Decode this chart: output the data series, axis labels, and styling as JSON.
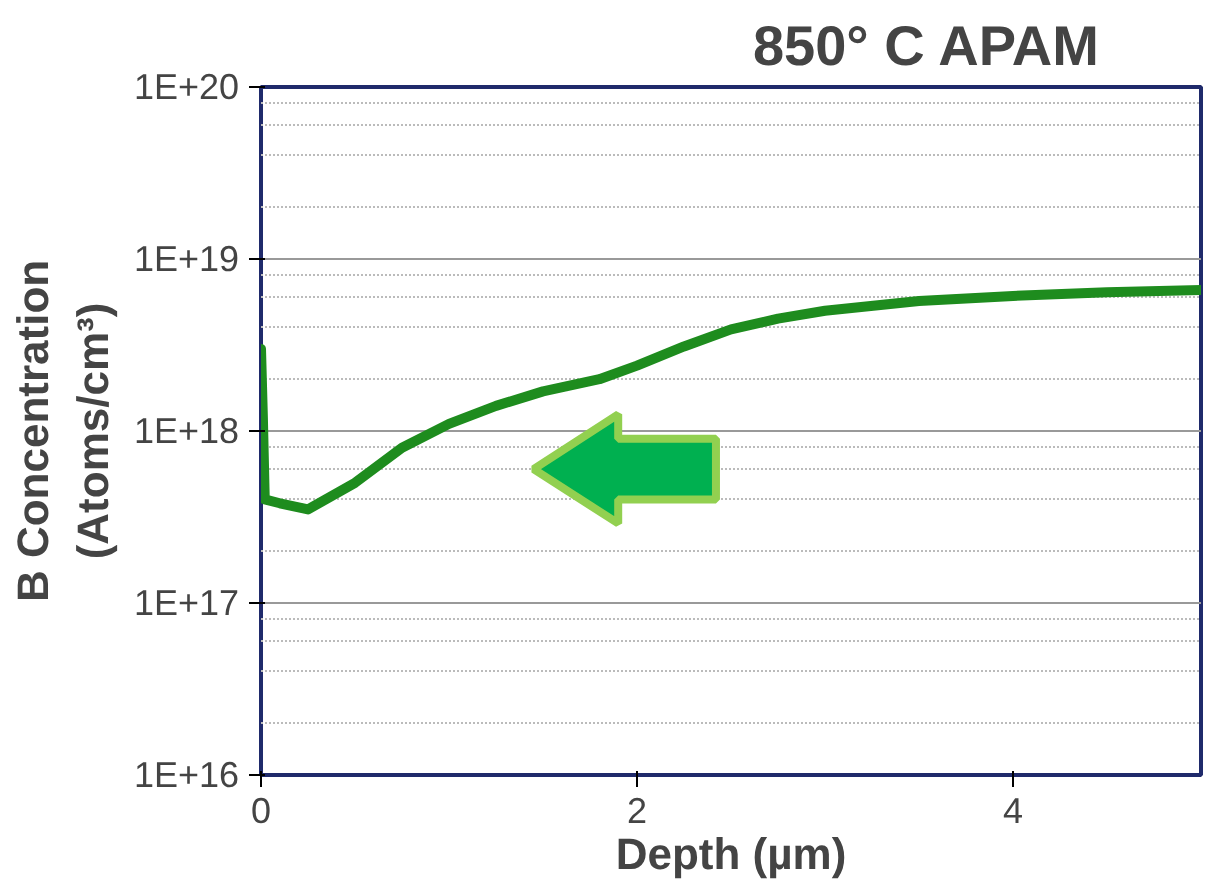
{
  "chart_data": {
    "type": "line",
    "title": "850° C APAM",
    "xlabel": "Depth (µm)",
    "ylabel": "B Concentration\n(Atoms/cm³)",
    "log": "y",
    "grid": "y",
    "marker": "none",
    "line_style": "solid",
    "xlim": [
      0,
      5
    ],
    "xticks": [
      0,
      2,
      4
    ],
    "ylim": [
      1e+16,
      1e+20
    ],
    "yticks": [
      {
        "value": 1e+16,
        "label": "1E+16"
      },
      {
        "value": 1e+17,
        "label": "1E+17"
      },
      {
        "value": 1e+18,
        "label": "1E+18"
      },
      {
        "value": 1e+19,
        "label": "1E+19"
      },
      {
        "value": 1e+20,
        "label": "1E+20"
      }
    ],
    "series": [
      {
        "color": "#1e8c1e",
        "x": [
          0,
          0.01,
          0.02,
          0.1,
          0.25,
          0.5,
          0.75,
          1,
          1.25,
          1.5,
          1.8,
          2,
          2.25,
          2.5,
          2.75,
          3,
          3.5,
          4,
          4.5,
          5
        ],
        "values": [
          3e+18,
          1.2e+18,
          4e+17,
          3.8e+17,
          3.5e+17,
          5e+17,
          8e+17,
          1.1e+18,
          1.4e+18,
          1.7e+18,
          2e+18,
          2.4e+18,
          3.1e+18,
          3.9e+18,
          4.5e+18,
          5e+18,
          5.7e+18,
          6.1e+18,
          6.4e+18,
          6.6e+18
        ]
      }
    ]
  }
}
